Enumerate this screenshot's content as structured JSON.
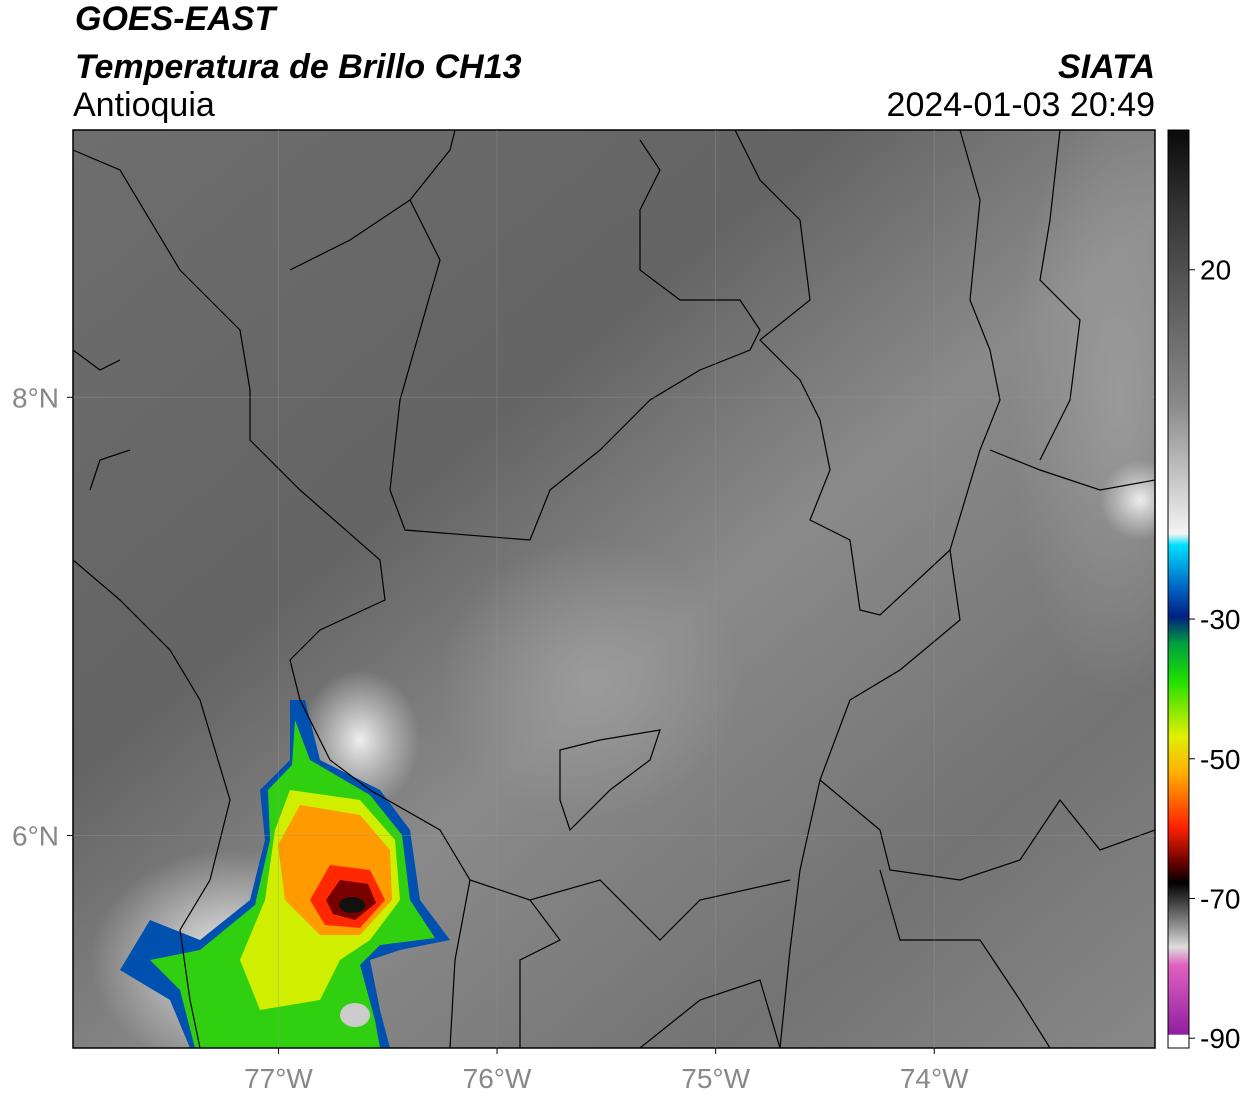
{
  "header": {
    "title": "GOES-EAST",
    "subtitle": "Temperatura de Brillo CH13",
    "region": "Antioquia",
    "source": "SIATA",
    "datetime": "2024-01-03 20:49"
  },
  "map": {
    "xlim": [
      -77.94,
      -72.99
    ],
    "ylim": [
      5.03,
      9.22
    ],
    "xticks": [
      {
        "value": -77,
        "label": "77°W"
      },
      {
        "value": -76,
        "label": "76°W"
      },
      {
        "value": -75,
        "label": "75°W"
      },
      {
        "value": -74,
        "label": "74°W"
      }
    ],
    "yticks": [
      {
        "value": 8,
        "label": "8°N"
      },
      {
        "value": 6,
        "label": "6°N"
      }
    ],
    "grid": true
  },
  "colorbar": {
    "lim": [
      -91.4,
      40
    ],
    "ticks": [
      20,
      -30,
      -50,
      -70,
      -90
    ]
  }
}
